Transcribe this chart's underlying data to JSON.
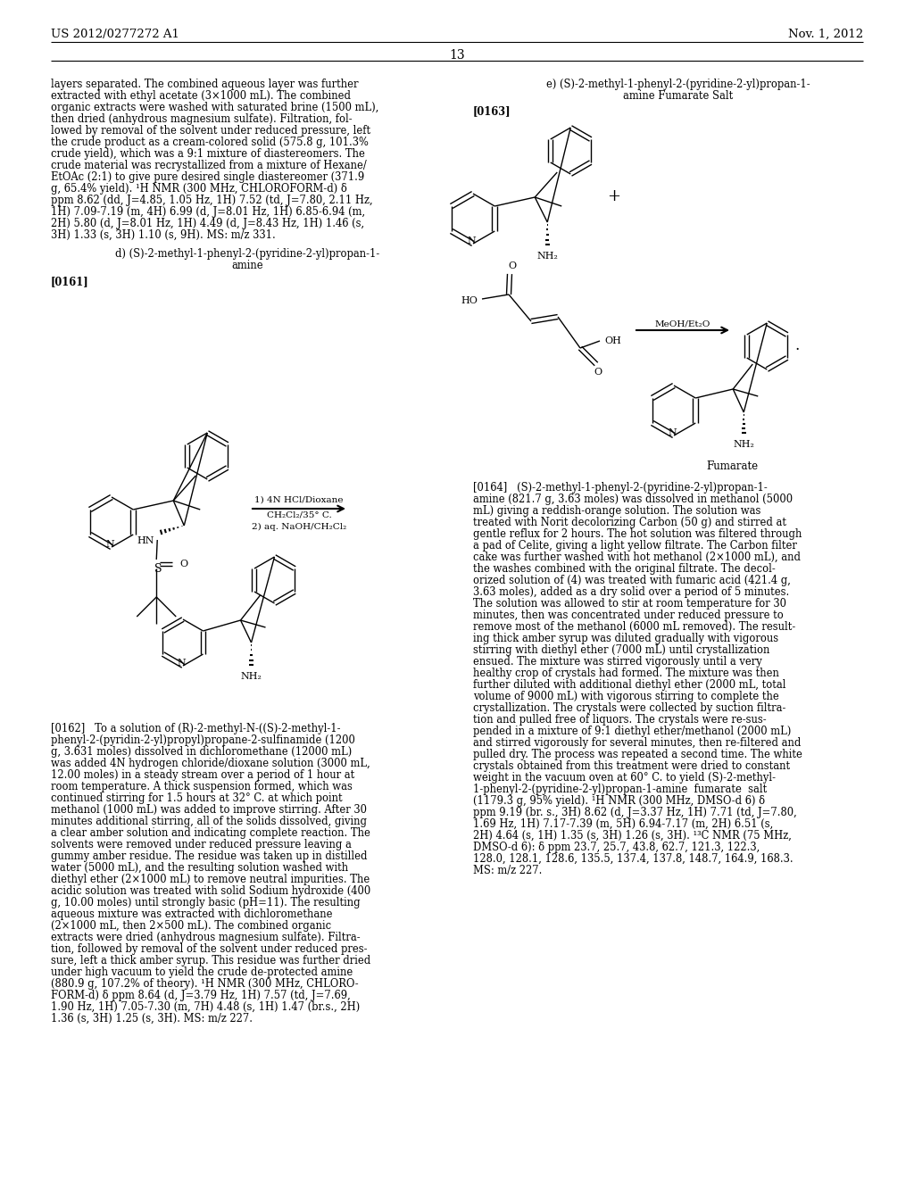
{
  "page_number": "13",
  "patent_number": "US 2012/0277272 A1",
  "patent_date": "Nov. 1, 2012",
  "background_color": "#ffffff",
  "left_column_text": [
    "layers separated. The combined aqueous layer was further",
    "extracted with ethyl acetate (3×1000 mL). The combined",
    "organic extracts were washed with saturated brine (1500 mL),",
    "then dried (anhydrous magnesium sulfate). Filtration, fol-",
    "lowed by removal of the solvent under reduced pressure, left",
    "the crude product as a cream-colored solid (575.8 g, 101.3%",
    "crude yield), which was a 9:1 mixture of diastereomers. The",
    "crude material was recrystallized from a mixture of Hexane/",
    "EtOAc (2:1) to give pure desired single diastereomer (371.9",
    "g, 65.4% yield). ¹H NMR (300 MHz, CHLOROFORM-d) δ",
    "ppm 8.62 (dd, J=4.85, 1.05 Hz, 1H) 7.52 (td, J=7.80, 2.11 Hz,",
    "1H) 7.09-7.19 (m, 4H) 6.99 (d, J=8.01 Hz, 1H) 6.85-6.94 (m,",
    "2H) 5.80 (d, J=8.01 Hz, 1H) 4.49 (d, J=8.43 Hz, 1H) 1.46 (s,",
    "3H) 1.33 (s, 3H) 1.10 (s, 9H). MS: m/z 331."
  ],
  "section_d_line1": "d) (S)-2-methyl-1-phenyl-2-(pyridine-2-yl)propan-1-",
  "section_d_line2": "amine",
  "para_0161": "[0161]",
  "para_0162_lines": [
    "[0162]   To a solution of (R)-2-methyl-N-((S)-2-methyl-1-",
    "phenyl-2-(pyridin-2-yl)propyl)propane-2-sulfinamide (1200",
    "g, 3.631 moles) dissolved in dichloromethane (12000 mL)",
    "was added 4N hydrogen chloride/dioxane solution (3000 mL,",
    "12.00 moles) in a steady stream over a period of 1 hour at",
    "room temperature. A thick suspension formed, which was",
    "continued stirring for 1.5 hours at 32° C. at which point",
    "methanol (1000 mL) was added to improve stirring. After 30",
    "minutes additional stirring, all of the solids dissolved, giving",
    "a clear amber solution and indicating complete reaction. The",
    "solvents were removed under reduced pressure leaving a",
    "gummy amber residue. The residue was taken up in distilled",
    "water (5000 mL), and the resulting solution washed with",
    "diethyl ether (2×1000 mL) to remove neutral impurities. The",
    "acidic solution was treated with solid Sodium hydroxide (400",
    "g, 10.00 moles) until strongly basic (pH=11). The resulting",
    "aqueous mixture was extracted with dichloromethane",
    "(2×1000 mL, then 2×500 mL). The combined organic",
    "extracts were dried (anhydrous magnesium sulfate). Filtra-",
    "tion, followed by removal of the solvent under reduced pres-",
    "sure, left a thick amber syrup. This residue was further dried",
    "under high vacuum to yield the crude de-protected amine",
    "(880.9 g, 107.2% of theory). ¹H NMR (300 MHz, CHLORO-",
    "FORM-d) δ ppm 8.64 (d, J=3.79 Hz, 1H) 7.57 (td, J=7.69,",
    "1.90 Hz, 1H) 7.05-7.30 (m, 7H) 4.48 (s, 1H) 1.47 (br.s., 2H)",
    "1.36 (s, 3H) 1.25 (s, 3H). MS: m/z 227."
  ],
  "section_e_line1": "e) (S)-2-methyl-1-phenyl-2-(pyridine-2-yl)propan-1-",
  "section_e_line2": "amine Fumarate Salt",
  "para_0163": "[0163]",
  "arrow_label": "MeOH/Et₂O",
  "fumarate_label": "Fumarate",
  "para_0164_lines": [
    "[0164]   (S)-2-methyl-1-phenyl-2-(pyridine-2-yl)propan-1-",
    "amine (821.7 g, 3.63 moles) was dissolved in methanol (5000",
    "mL) giving a reddish-orange solution. The solution was",
    "treated with Norit decolorizing Carbon (50 g) and stirred at",
    "gentle reflux for 2 hours. The hot solution was filtered through",
    "a pad of Celite, giving a light yellow filtrate. The Carbon filter",
    "cake was further washed with hot methanol (2×1000 mL), and",
    "the washes combined with the original filtrate. The decol-",
    "orized solution of (4) was treated with fumaric acid (421.4 g,",
    "3.63 moles), added as a dry solid over a period of 5 minutes.",
    "The solution was allowed to stir at room temperature for 30",
    "minutes, then was concentrated under reduced pressure to",
    "remove most of the methanol (6000 mL removed). The result-",
    "ing thick amber syrup was diluted gradually with vigorous",
    "stirring with diethyl ether (7000 mL) until crystallization",
    "ensued. The mixture was stirred vigorously until a very",
    "healthy crop of crystals had formed. The mixture was then",
    "further diluted with additional diethyl ether (2000 mL, total",
    "volume of 9000 mL) with vigorous stirring to complete the",
    "crystallization. The crystals were collected by suction filtra-",
    "tion and pulled free of liquors. The crystals were re-sus-",
    "pended in a mixture of 9:1 diethyl ether/methanol (2000 mL)",
    "and stirred vigorously for several minutes, then re-filtered and",
    "pulled dry. The process was repeated a second time. The white",
    "crystals obtained from this treatment were dried to constant",
    "weight in the vacuum oven at 60° C. to yield (S)-2-methyl-",
    "1-phenyl-2-(pyridine-2-yl)propan-1-amine  fumarate  salt",
    "(1179.3 g, 95% yield). ¹H NMR (300 MHz, DMSO-d 6) δ",
    "ppm 9.19 (br. s., 3H) 8.62 (d, J=3.37 Hz, 1H) 7.71 (td, J=7.80,",
    "1.69 Hz, 1H) 7.17-7.39 (m, 5H) 6.94-7.17 (m, 2H) 6.51 (s,",
    "2H) 4.64 (s, 1H) 1.35 (s, 3H) 1.26 (s, 3H). ¹³C NMR (75 MHz,",
    "DMSO-d 6): δ ppm 23.7, 25.7, 43.8, 62.7, 121.3, 122.3,",
    "128.0, 128.1, 128.6, 135.5, 137.4, 137.8, 148.7, 164.9, 168.3.",
    "MS: m/z 227."
  ]
}
